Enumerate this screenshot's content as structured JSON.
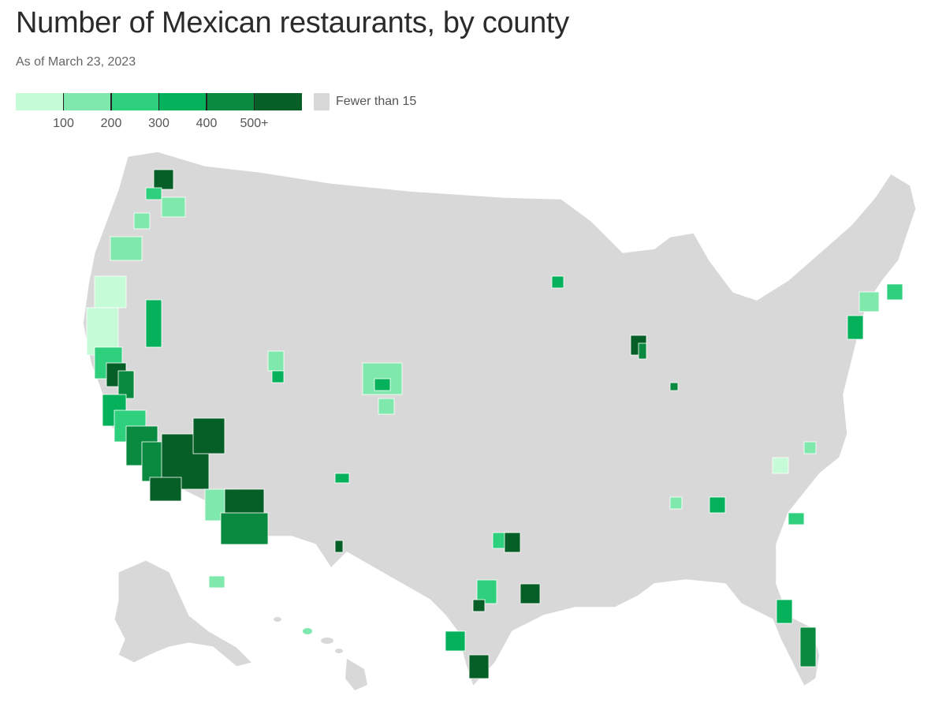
{
  "title": "Number of Mexican restaurants, by county",
  "subtitle": "As of March 23, 2023",
  "legend": {
    "bins": [
      {
        "color": "#c6fbd8"
      },
      {
        "color": "#7fe9ad"
      },
      {
        "color": "#2fd07d"
      },
      {
        "color": "#05b25b"
      },
      {
        "color": "#0a8a40"
      },
      {
        "color": "#075f28"
      }
    ],
    "ticks": [
      "100",
      "200",
      "300",
      "400",
      "500+"
    ],
    "no_data_color": "#d8d8d8",
    "no_data_label": "Fewer than 15"
  },
  "map": {
    "land_color": "#d8d8d8",
    "border_color": "#ffffff",
    "regions": [
      {
        "name": "contiguous-us"
      },
      {
        "name": "alaska"
      },
      {
        "name": "hawaii"
      }
    ]
  }
}
